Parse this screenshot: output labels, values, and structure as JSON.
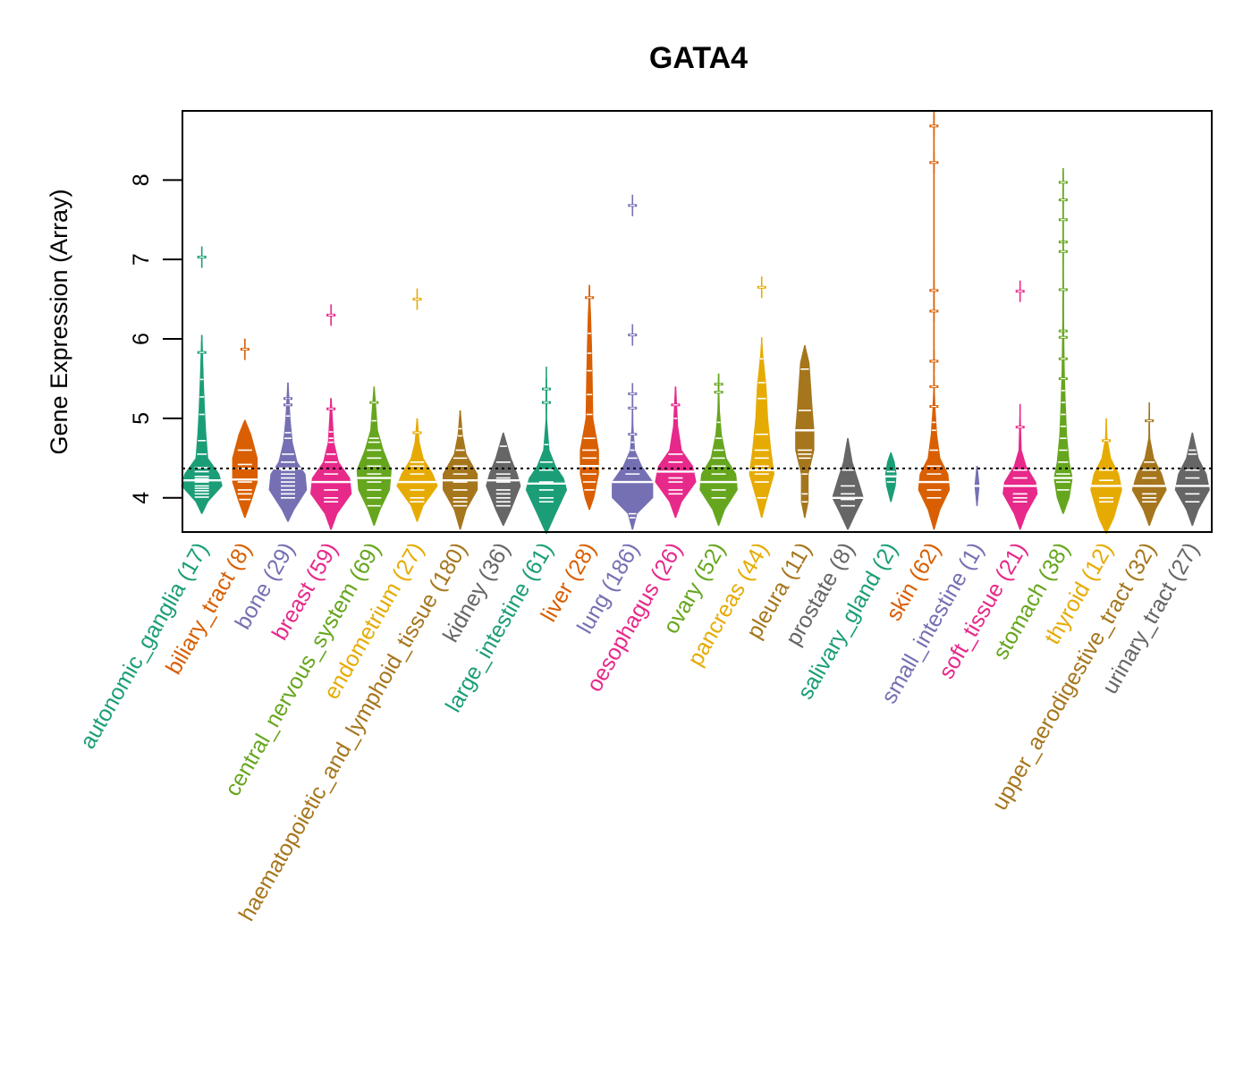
{
  "chart_data": {
    "type": "beanplot",
    "title": "GATA4",
    "xlabel": "",
    "ylabel": "Gene Expression (Array)",
    "ylim": [
      3.57,
      8.87
    ],
    "yticks": [
      4,
      5,
      6,
      7,
      8
    ],
    "reference_line": 4.37,
    "grid": false,
    "legend": "none",
    "palette": [
      "#1B9E77",
      "#D95F02",
      "#7570B3",
      "#E7298A",
      "#66A61E",
      "#E6AB02",
      "#A6761D",
      "#666666"
    ],
    "categories": [
      {
        "name": "autonomic_ganglia",
        "n": 17,
        "median": 4.22,
        "min": 3.8,
        "max": 6.05,
        "density": [
          [
            3.8,
            0.02
          ],
          [
            3.95,
            0.2
          ],
          [
            4.15,
            0.65
          ],
          [
            4.3,
            0.55
          ],
          [
            4.5,
            0.2
          ],
          [
            4.8,
            0.14
          ],
          [
            5.1,
            0.1
          ],
          [
            5.5,
            0.06
          ],
          [
            6.05,
            0.02
          ]
        ],
        "points": [
          7.03,
          5.83,
          5.49,
          5.27,
          5.05,
          4.72,
          4.55,
          4.38,
          4.33,
          4.27,
          4.24,
          4.2,
          4.15,
          4.12,
          4.09,
          4.05,
          4.01
        ]
      },
      {
        "name": "biliary_tract",
        "n": 8,
        "median": 4.23,
        "min": 3.75,
        "max": 4.98,
        "density": [
          [
            3.75,
            0.02
          ],
          [
            3.95,
            0.2
          ],
          [
            4.2,
            0.4
          ],
          [
            4.5,
            0.4
          ],
          [
            4.8,
            0.2
          ],
          [
            4.98,
            0.02
          ]
        ],
        "points": [
          5.87,
          4.6,
          4.42,
          4.37,
          4.2,
          4.1,
          4.05,
          3.98
        ]
      },
      {
        "name": "bone",
        "n": 29,
        "median": 4.37,
        "min": 3.7,
        "max": 5.45,
        "density": [
          [
            3.7,
            0.02
          ],
          [
            3.85,
            0.2
          ],
          [
            4.1,
            0.6
          ],
          [
            4.3,
            0.55
          ],
          [
            4.45,
            0.3
          ],
          [
            4.7,
            0.15
          ],
          [
            5.0,
            0.08
          ],
          [
            5.45,
            0.02
          ]
        ],
        "points": [
          5.25,
          5.17,
          5.03,
          4.82,
          4.75,
          4.55,
          4.45,
          4.35,
          4.3,
          4.25,
          4.2,
          4.15,
          4.1,
          4.05,
          4.0
        ]
      },
      {
        "name": "breast",
        "n": 59,
        "median": 4.2,
        "min": 3.6,
        "max": 5.25,
        "density": [
          [
            3.6,
            0.02
          ],
          [
            3.8,
            0.2
          ],
          [
            4.05,
            0.65
          ],
          [
            4.25,
            0.6
          ],
          [
            4.45,
            0.25
          ],
          [
            4.7,
            0.1
          ],
          [
            5.25,
            0.02
          ]
        ],
        "points": [
          6.3,
          5.12,
          4.83,
          4.75,
          4.7,
          4.55,
          4.45,
          4.3,
          4.2,
          4.1,
          4.0,
          3.95
        ]
      },
      {
        "name": "central_nervous_system",
        "n": 69,
        "median": 4.25,
        "min": 3.65,
        "max": 5.4,
        "density": [
          [
            3.65,
            0.02
          ],
          [
            3.85,
            0.2
          ],
          [
            4.1,
            0.5
          ],
          [
            4.35,
            0.55
          ],
          [
            4.6,
            0.3
          ],
          [
            4.85,
            0.12
          ],
          [
            5.4,
            0.02
          ]
        ],
        "points": [
          5.2,
          4.97,
          4.75,
          4.7,
          4.6,
          4.5,
          4.4,
          4.3,
          4.2,
          4.1,
          4.0,
          3.9
        ]
      },
      {
        "name": "endometrium",
        "n": 27,
        "median": 4.2,
        "min": 3.7,
        "max": 5.0,
        "density": [
          [
            3.7,
            0.02
          ],
          [
            3.9,
            0.2
          ],
          [
            4.15,
            0.65
          ],
          [
            4.3,
            0.5
          ],
          [
            4.5,
            0.2
          ],
          [
            4.7,
            0.08
          ],
          [
            5.0,
            0.02
          ]
        ],
        "points": [
          6.5,
          4.82,
          4.45,
          4.4,
          4.3,
          4.2,
          4.1,
          4.0,
          3.95
        ]
      },
      {
        "name": "haematopoietic_and_lymphoid_tissue",
        "n": 180,
        "median": 4.22,
        "min": 3.6,
        "max": 5.1,
        "density": [
          [
            3.6,
            0.02
          ],
          [
            3.85,
            0.2
          ],
          [
            4.1,
            0.55
          ],
          [
            4.3,
            0.55
          ],
          [
            4.55,
            0.2
          ],
          [
            4.8,
            0.08
          ],
          [
            5.1,
            0.02
          ]
        ],
        "points": [
          4.87,
          4.78,
          4.6,
          4.5,
          4.4,
          4.3,
          4.2,
          4.1,
          4.0,
          3.95,
          3.9
        ]
      },
      {
        "name": "kidney",
        "n": 36,
        "median": 4.22,
        "min": 3.65,
        "max": 4.82,
        "density": [
          [
            3.65,
            0.02
          ],
          [
            3.85,
            0.25
          ],
          [
            4.15,
            0.55
          ],
          [
            4.3,
            0.45
          ],
          [
            4.5,
            0.25
          ],
          [
            4.82,
            0.02
          ]
        ],
        "points": [
          4.65,
          4.45,
          4.3,
          4.25,
          4.2,
          4.1,
          4.05,
          4.0,
          3.95,
          3.9
        ]
      },
      {
        "name": "large_intestine",
        "n": 61,
        "median": 4.18,
        "min": 3.55,
        "max": 5.65,
        "density": [
          [
            3.55,
            0.02
          ],
          [
            3.8,
            0.3
          ],
          [
            4.1,
            0.65
          ],
          [
            4.25,
            0.55
          ],
          [
            4.4,
            0.3
          ],
          [
            4.6,
            0.1
          ],
          [
            5.0,
            0.02
          ],
          [
            5.65,
            0.01
          ]
        ],
        "points": [
          5.37,
          5.2,
          4.67,
          4.45,
          4.35,
          4.2,
          4.1,
          4.0,
          3.95
        ]
      },
      {
        "name": "liver",
        "n": 28,
        "median": 4.4,
        "min": 3.85,
        "max": 6.68,
        "density": [
          [
            3.85,
            0.02
          ],
          [
            4.0,
            0.15
          ],
          [
            4.3,
            0.3
          ],
          [
            4.6,
            0.3
          ],
          [
            5.0,
            0.12
          ],
          [
            5.5,
            0.1
          ],
          [
            5.9,
            0.08
          ],
          [
            6.3,
            0.05
          ],
          [
            6.68,
            0.01
          ]
        ],
        "points": [
          6.52,
          6.07,
          5.82,
          5.6,
          5.3,
          5.05,
          4.75,
          4.6,
          4.5,
          4.4,
          4.3,
          4.2,
          4.1
        ]
      },
      {
        "name": "lung",
        "n": 186,
        "median": 4.2,
        "min": 3.6,
        "max": 5.35,
        "density": [
          [
            3.6,
            0.02
          ],
          [
            3.8,
            0.15
          ],
          [
            4.0,
            0.65
          ],
          [
            4.2,
            0.65
          ],
          [
            4.4,
            0.3
          ],
          [
            4.6,
            0.08
          ],
          [
            4.9,
            0.03
          ],
          [
            5.35,
            0.01
          ]
        ],
        "points": [
          7.68,
          6.05,
          5.31,
          5.13,
          4.8,
          4.7,
          4.6,
          4.5,
          4.3,
          4.2,
          3.8,
          3.75
        ]
      },
      {
        "name": "oesophagus",
        "n": 26,
        "median": 4.33,
        "min": 3.75,
        "max": 5.4,
        "density": [
          [
            3.75,
            0.02
          ],
          [
            3.95,
            0.2
          ],
          [
            4.2,
            0.65
          ],
          [
            4.4,
            0.55
          ],
          [
            4.6,
            0.2
          ],
          [
            4.9,
            0.08
          ],
          [
            5.4,
            0.02
          ]
        ],
        "points": [
          5.17,
          5.0,
          4.55,
          4.45,
          4.33,
          4.25,
          4.2,
          4.1,
          4.05
        ]
      },
      {
        "name": "ovary",
        "n": 52,
        "median": 4.2,
        "min": 3.65,
        "max": 5.55,
        "density": [
          [
            3.65,
            0.02
          ],
          [
            3.85,
            0.2
          ],
          [
            4.1,
            0.6
          ],
          [
            4.3,
            0.55
          ],
          [
            4.5,
            0.25
          ],
          [
            4.8,
            0.1
          ],
          [
            5.1,
            0.04
          ],
          [
            5.55,
            0.01
          ]
        ],
        "points": [
          5.43,
          5.33,
          4.95,
          4.75,
          4.6,
          4.5,
          4.4,
          4.3,
          4.2,
          4.1,
          4.0
        ]
      },
      {
        "name": "pancreas",
        "n": 44,
        "median": 4.35,
        "min": 3.75,
        "max": 6.02,
        "density": [
          [
            3.75,
            0.02
          ],
          [
            3.95,
            0.15
          ],
          [
            4.3,
            0.4
          ],
          [
            4.6,
            0.3
          ],
          [
            5.0,
            0.2
          ],
          [
            5.4,
            0.15
          ],
          [
            5.8,
            0.05
          ],
          [
            6.02,
            0.01
          ]
        ],
        "points": [
          6.65,
          5.75,
          5.45,
          5.25,
          4.8,
          4.6,
          4.5,
          4.4,
          4.3,
          4.2,
          4.0
        ]
      },
      {
        "name": "pleura",
        "n": 11,
        "median": 4.85,
        "min": 3.75,
        "max": 5.92,
        "density": [
          [
            3.75,
            0.02
          ],
          [
            3.95,
            0.12
          ],
          [
            4.3,
            0.12
          ],
          [
            4.6,
            0.3
          ],
          [
            4.85,
            0.3
          ],
          [
            5.1,
            0.25
          ],
          [
            5.4,
            0.2
          ],
          [
            5.7,
            0.15
          ],
          [
            5.92,
            0.02
          ]
        ],
        "points": [
          5.62,
          5.1,
          4.85,
          4.6,
          4.55,
          4.5,
          4.3,
          4.05,
          3.95
        ]
      },
      {
        "name": "prostate",
        "n": 8,
        "median": 4.0,
        "min": 3.6,
        "max": 4.75,
        "density": [
          [
            3.6,
            0.02
          ],
          [
            3.8,
            0.25
          ],
          [
            4.0,
            0.5
          ],
          [
            4.2,
            0.35
          ],
          [
            4.45,
            0.15
          ],
          [
            4.75,
            0.02
          ]
        ],
        "points": [
          4.35,
          4.15,
          4.05,
          3.98,
          3.9
        ]
      },
      {
        "name": "salivary_gland",
        "n": 2,
        "median": 4.27,
        "min": 3.95,
        "max": 4.57,
        "density": [
          [
            3.95,
            0.02
          ],
          [
            4.15,
            0.15
          ],
          [
            4.3,
            0.18
          ],
          [
            4.45,
            0.12
          ],
          [
            4.57,
            0.02
          ]
        ],
        "points": [
          4.33,
          4.2
        ]
      },
      {
        "name": "skin",
        "n": 62,
        "median": 4.2,
        "min": 3.6,
        "max": 8.87,
        "density": [
          [
            3.6,
            0.02
          ],
          [
            3.85,
            0.2
          ],
          [
            4.1,
            0.5
          ],
          [
            4.3,
            0.45
          ],
          [
            4.5,
            0.2
          ],
          [
            4.8,
            0.1
          ],
          [
            5.1,
            0.05
          ],
          [
            5.4,
            0.02
          ],
          [
            8.87,
            0.005
          ]
        ],
        "points": [
          8.68,
          8.22,
          6.61,
          6.35,
          5.72,
          5.4,
          5.15,
          4.95,
          4.85,
          4.6,
          4.4,
          4.3,
          4.2,
          4.1,
          4.0
        ]
      },
      {
        "name": "small_intestine",
        "n": 1,
        "median": 4.15,
        "min": 3.9,
        "max": 4.4,
        "density": [
          [
            3.9,
            0.02
          ],
          [
            4.15,
            0.08
          ],
          [
            4.4,
            0.02
          ]
        ],
        "points": [
          4.15
        ]
      },
      {
        "name": "soft_tissue",
        "n": 21,
        "median": 4.15,
        "min": 3.6,
        "max": 5.18,
        "density": [
          [
            3.6,
            0.02
          ],
          [
            3.8,
            0.2
          ],
          [
            4.05,
            0.55
          ],
          [
            4.2,
            0.5
          ],
          [
            4.4,
            0.2
          ],
          [
            4.6,
            0.05
          ],
          [
            5.18,
            0.01
          ]
        ],
        "points": [
          6.6,
          4.89,
          4.35,
          4.25,
          4.15,
          4.05,
          4.0,
          3.95
        ]
      },
      {
        "name": "stomach",
        "n": 38,
        "median": 4.25,
        "min": 3.8,
        "max": 8.15,
        "density": [
          [
            3.8,
            0.02
          ],
          [
            4.0,
            0.2
          ],
          [
            4.25,
            0.3
          ],
          [
            4.45,
            0.2
          ],
          [
            4.8,
            0.12
          ],
          [
            5.2,
            0.08
          ],
          [
            5.6,
            0.05
          ],
          [
            6.2,
            0.03
          ],
          [
            7.0,
            0.02
          ],
          [
            8.15,
            0.01
          ]
        ],
        "points": [
          7.97,
          7.75,
          7.5,
          7.22,
          7.1,
          6.62,
          6.1,
          6.02,
          5.75,
          5.5,
          5.35,
          5.2,
          5.05,
          4.9,
          4.75,
          4.6,
          4.45,
          4.3,
          4.2,
          4.1
        ]
      },
      {
        "name": "thyroid",
        "n": 12,
        "median": 4.15,
        "min": 3.55,
        "max": 5.0,
        "density": [
          [
            3.55,
            0.02
          ],
          [
            3.75,
            0.25
          ],
          [
            4.1,
            0.5
          ],
          [
            4.3,
            0.4
          ],
          [
            4.5,
            0.15
          ],
          [
            4.75,
            0.04
          ],
          [
            5.0,
            0.01
          ]
        ],
        "points": [
          4.72,
          4.35,
          4.22,
          4.15,
          4.0,
          3.95
        ]
      },
      {
        "name": "upper_aerodigestive_tract",
        "n": 32,
        "median": 4.15,
        "min": 3.65,
        "max": 5.2,
        "density": [
          [
            3.65,
            0.02
          ],
          [
            3.85,
            0.2
          ],
          [
            4.1,
            0.55
          ],
          [
            4.3,
            0.4
          ],
          [
            4.5,
            0.15
          ],
          [
            4.75,
            0.03
          ],
          [
            5.2,
            0.01
          ]
        ],
        "points": [
          4.97,
          4.45,
          4.35,
          4.25,
          4.15,
          4.05,
          4.0,
          3.95
        ]
      },
      {
        "name": "urinary_tract",
        "n": 27,
        "median": 4.15,
        "min": 3.65,
        "max": 4.82,
        "density": [
          [
            3.65,
            0.02
          ],
          [
            3.85,
            0.2
          ],
          [
            4.1,
            0.55
          ],
          [
            4.3,
            0.45
          ],
          [
            4.5,
            0.2
          ],
          [
            4.82,
            0.02
          ]
        ],
        "points": [
          4.6,
          4.55,
          4.35,
          4.25,
          4.15,
          4.05,
          3.95
        ]
      }
    ]
  }
}
